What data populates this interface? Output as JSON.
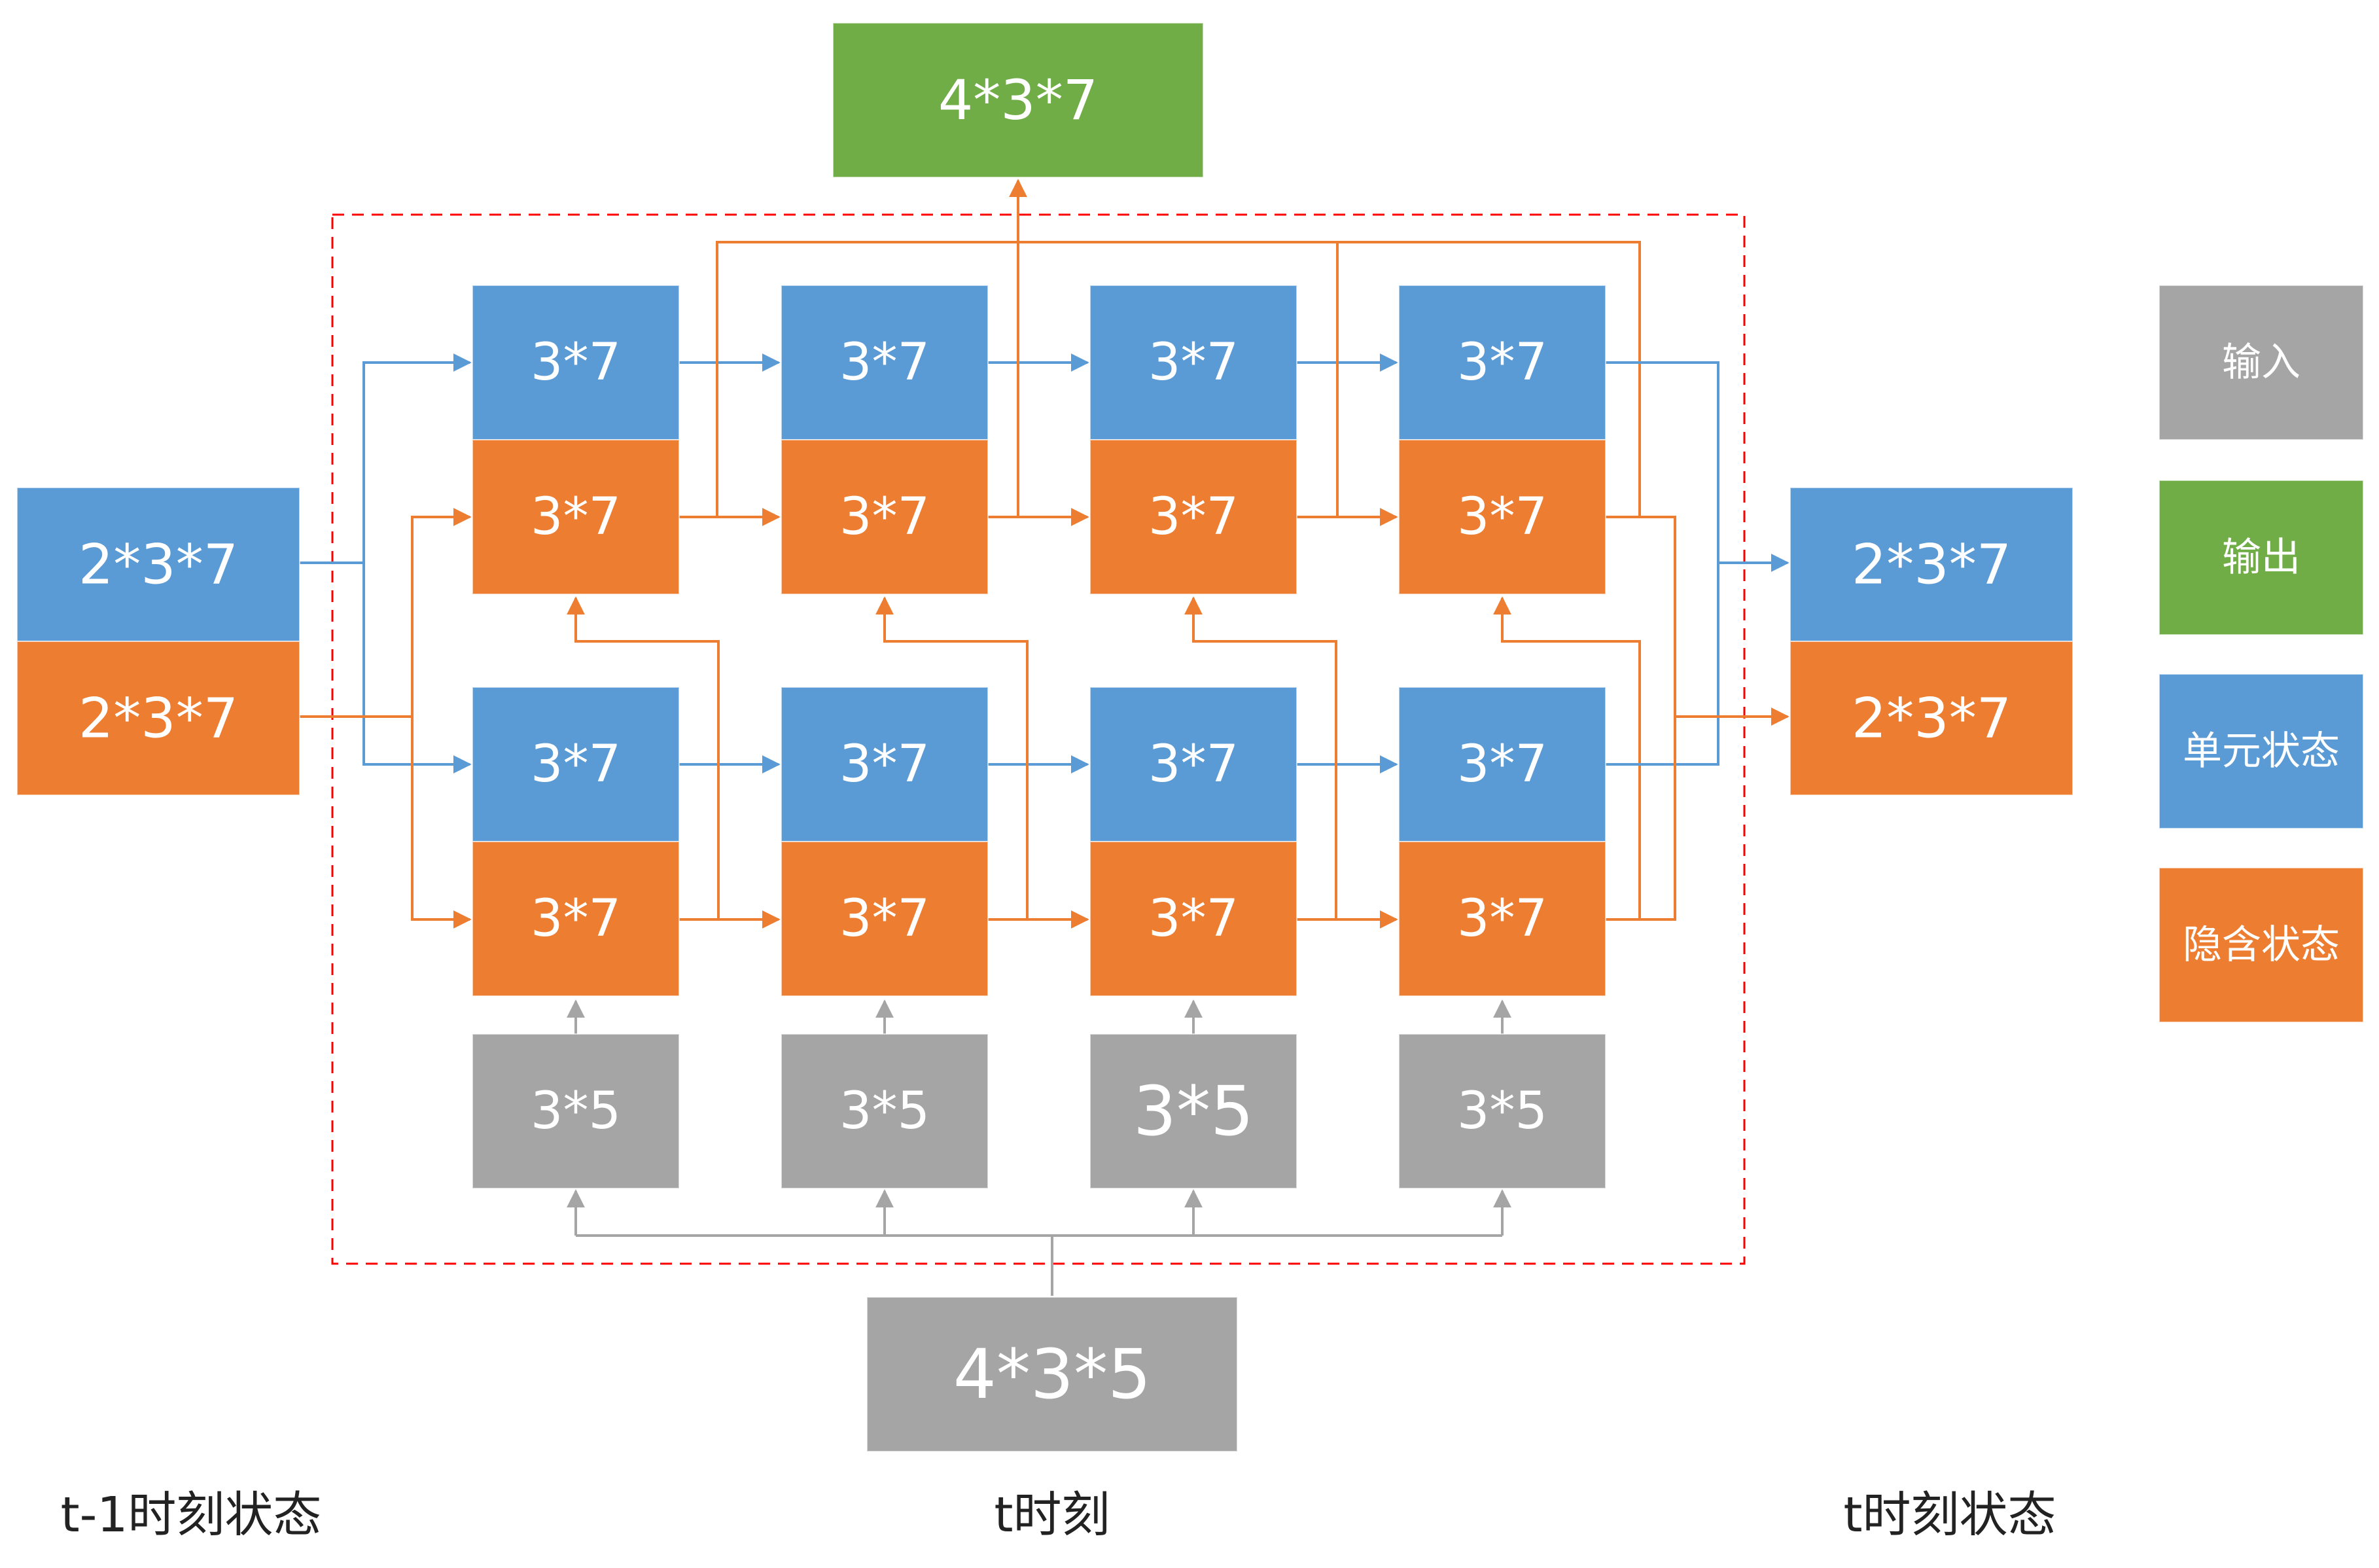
{
  "colors": {
    "input": "#a5a5a5",
    "output": "#70ad47",
    "cell_state": "#5b9bd5",
    "hidden_state": "#ed7d31",
    "frame": "#ff0000"
  },
  "output_top": "4*3*7",
  "input_bottom": "4*3*5",
  "prev_state": {
    "cell": "2*3*7",
    "hidden": "2*3*7"
  },
  "next_state": {
    "cell": "2*3*7",
    "hidden": "2*3*7"
  },
  "layer2": [
    {
      "cell": "3*7",
      "hidden": "3*7"
    },
    {
      "cell": "3*7",
      "hidden": "3*7"
    },
    {
      "cell": "3*7",
      "hidden": "3*7"
    },
    {
      "cell": "3*7",
      "hidden": "3*7"
    }
  ],
  "layer1": [
    {
      "cell": "3*7",
      "hidden": "3*7"
    },
    {
      "cell": "3*7",
      "hidden": "3*7"
    },
    {
      "cell": "3*7",
      "hidden": "3*7"
    },
    {
      "cell": "3*7",
      "hidden": "3*7"
    }
  ],
  "inputs": [
    "3*5",
    "3*5",
    "3*5",
    "3*5"
  ],
  "legend": {
    "input": "输入",
    "output": "输出",
    "cell_state": "单元状态",
    "hidden_state": "隐含状态"
  },
  "captions": {
    "prev": "t-1时刻状态",
    "now": "t时刻",
    "next": "t时刻状态"
  }
}
